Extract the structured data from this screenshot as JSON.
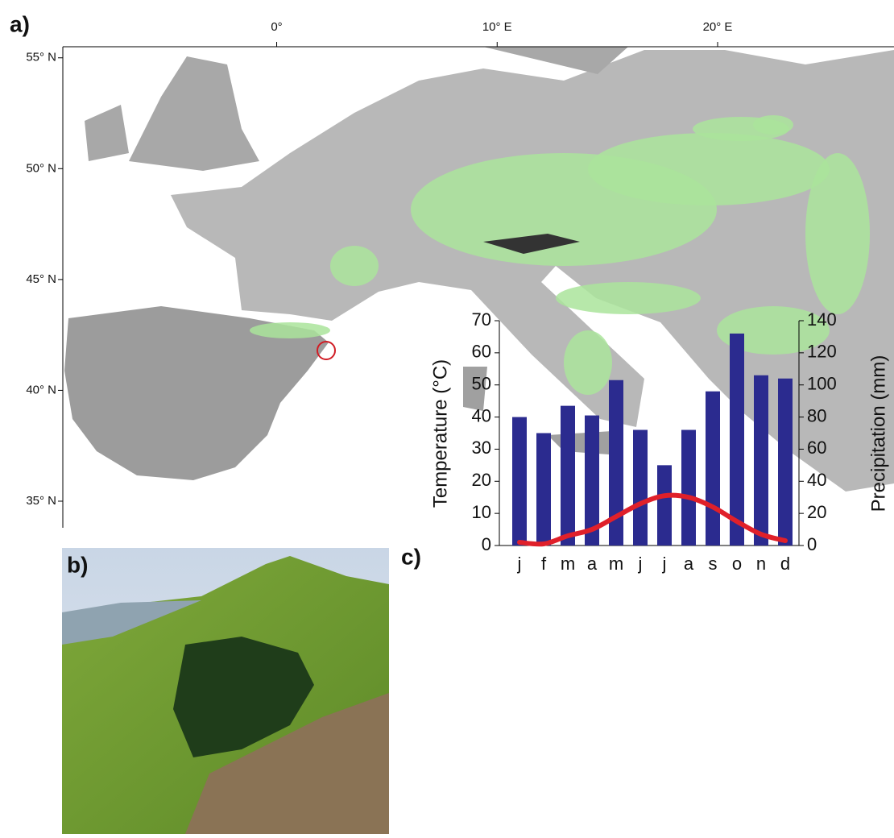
{
  "panel_labels": [
    "a)",
    "b)",
    "c)"
  ],
  "chart_data": [
    {
      "type": "map",
      "xlim": [
        -9.7,
        28.0
      ],
      "xticks": [
        {
          "value": 0,
          "label": "0°"
        },
        {
          "value": 10,
          "label": "10° E"
        },
        {
          "value": 20,
          "label": "20° E"
        }
      ],
      "ylim": [
        33.8,
        55.5
      ],
      "yticks": [
        {
          "value": 55,
          "label": "55° N"
        },
        {
          "value": 50,
          "label": "50° N"
        },
        {
          "value": 45,
          "label": "45° N"
        },
        {
          "value": 40,
          "label": "40° N"
        },
        {
          "value": 35,
          "label": "35° N"
        }
      ]
    },
    {
      "type": "bar",
      "categories": [
        "j",
        "f",
        "m",
        "a",
        "m",
        "j",
        "j",
        "a",
        "s",
        "o",
        "n",
        "d"
      ],
      "ylabel": "Temperature (°C)",
      "y2label": "Precipitation (mm)",
      "ylim": [
        0,
        70
      ],
      "yticks": [
        0,
        10,
        20,
        30,
        40,
        50,
        60,
        70
      ],
      "y2lim": [
        0,
        140
      ],
      "y2ticks": [
        0,
        20,
        40,
        60,
        80,
        100,
        120,
        140
      ],
      "series": [
        {
          "type": "bar",
          "color": "#2b2b8f",
          "axis": "y2",
          "values": [
            80,
            70,
            87,
            81,
            103,
            72,
            50,
            72,
            96,
            132,
            106,
            104
          ]
        },
        {
          "type": "line",
          "color": "#e0202a",
          "values": [
            1,
            0.5,
            3,
            5,
            9,
            13,
            15.5,
            15,
            12,
            7.5,
            3.5,
            1.5
          ]
        }
      ]
    }
  ]
}
